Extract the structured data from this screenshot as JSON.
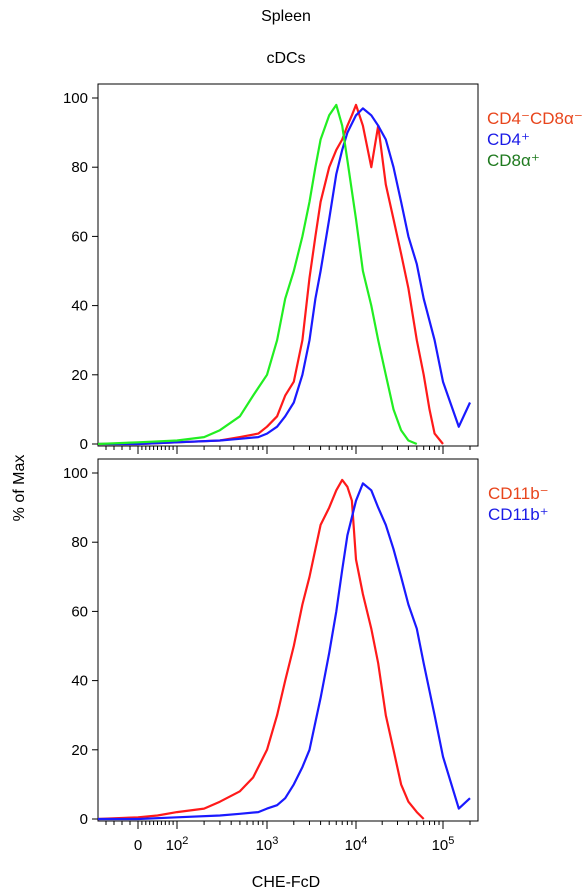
{
  "figure": {
    "title": "Spleen",
    "subtitle": "cDCs",
    "ylabel": "% of Max",
    "xlabel": "CHE-FcD"
  },
  "colors": {
    "red": "#ff1a1a",
    "blue": "#1a1aff",
    "green": "#22ee22",
    "legend_red": "#e8451c",
    "legend_blue": "#1a1ae6",
    "legend_green": "#1f7a1f"
  },
  "chart_data": [
    {
      "type": "line",
      "panel": "top",
      "title": "Spleen",
      "subtitle": "cDCs",
      "xscale": "biexponential",
      "xlim": [
        -50,
        200000
      ],
      "ylim": [
        0,
        100
      ],
      "yticks": [
        0,
        20,
        40,
        60,
        80,
        100
      ],
      "legend": [
        "CD4⁻CD8α⁻",
        "CD4⁺",
        "CD8α⁺"
      ],
      "legend_position": "right",
      "series": [
        {
          "name": "CD4⁻CD8α⁻",
          "color": "#ff1a1a",
          "x": [
            -50,
            0,
            100,
            300,
            500,
            800,
            1000,
            1300,
            1600,
            2000,
            2500,
            3000,
            3500,
            4000,
            5000,
            6000,
            7000,
            8000,
            9000,
            10000,
            12000,
            15000,
            18000,
            22000,
            27000,
            33000,
            40000,
            50000,
            60000,
            70000,
            80000,
            100000
          ],
          "y": [
            0,
            0,
            0.5,
            1,
            2,
            3,
            5,
            8,
            14,
            18,
            30,
            48,
            60,
            70,
            80,
            85,
            88,
            92,
            95,
            98,
            92,
            80,
            92,
            75,
            65,
            55,
            45,
            30,
            20,
            10,
            3,
            0
          ]
        },
        {
          "name": "CD4⁺",
          "color": "#1a1aff",
          "x": [
            -50,
            0,
            100,
            300,
            500,
            800,
            1000,
            1300,
            1600,
            2000,
            2500,
            3000,
            3500,
            4000,
            5000,
            6000,
            7000,
            8000,
            10000,
            12000,
            15000,
            18000,
            22000,
            27000,
            33000,
            40000,
            50000,
            60000,
            80000,
            100000,
            150000,
            200000
          ],
          "y": [
            0,
            0,
            0.5,
            1,
            1.5,
            2,
            3,
            5,
            8,
            12,
            20,
            30,
            42,
            50,
            65,
            78,
            85,
            90,
            95,
            97,
            95,
            92,
            88,
            80,
            70,
            60,
            52,
            42,
            30,
            18,
            5,
            12
          ]
        },
        {
          "name": "CD8α⁺",
          "color": "#22ee22",
          "x": [
            -50,
            0,
            100,
            200,
            300,
            500,
            700,
            1000,
            1300,
            1600,
            2000,
            2500,
            3000,
            3500,
            4000,
            5000,
            6000,
            7000,
            8000,
            10000,
            12000,
            15000,
            18000,
            22000,
            27000,
            33000,
            40000,
            50000
          ],
          "y": [
            0,
            0.5,
            1,
            2,
            4,
            8,
            14,
            20,
            30,
            42,
            50,
            60,
            70,
            80,
            88,
            95,
            98,
            92,
            82,
            65,
            50,
            40,
            30,
            20,
            10,
            4,
            1,
            0
          ]
        }
      ]
    },
    {
      "type": "line",
      "panel": "bottom",
      "xscale": "biexponential",
      "xlim": [
        -50,
        200000
      ],
      "ylim": [
        0,
        100
      ],
      "yticks": [
        0,
        20,
        40,
        60,
        80,
        100
      ],
      "xticks": [
        "0",
        "10²",
        "10³",
        "10⁴",
        "10⁵"
      ],
      "legend": [
        "CD11b⁻",
        "CD11b⁺"
      ],
      "legend_position": "right",
      "series": [
        {
          "name": "CD11b⁻",
          "color": "#ff1a1a",
          "x": [
            -50,
            0,
            50,
            100,
            200,
            300,
            500,
            700,
            1000,
            1300,
            1600,
            2000,
            2500,
            3000,
            3500,
            4000,
            5000,
            6000,
            7000,
            8000,
            9000,
            10000,
            12000,
            15000,
            18000,
            22000,
            27000,
            33000,
            40000,
            50000,
            60000
          ],
          "y": [
            0,
            0.5,
            1,
            2,
            3,
            5,
            8,
            12,
            20,
            30,
            40,
            50,
            62,
            70,
            78,
            85,
            90,
            95,
            98,
            96,
            92,
            75,
            65,
            55,
            45,
            30,
            20,
            10,
            5,
            2,
            0
          ]
        },
        {
          "name": "CD11b⁺",
          "color": "#1a1aff",
          "x": [
            -50,
            0,
            100,
            300,
            500,
            800,
            1000,
            1300,
            1600,
            2000,
            2500,
            3000,
            3500,
            4000,
            5000,
            6000,
            7000,
            8000,
            10000,
            12000,
            15000,
            18000,
            22000,
            27000,
            33000,
            40000,
            50000,
            60000,
            80000,
            100000,
            150000,
            200000
          ],
          "y": [
            0,
            0,
            0.5,
            1,
            1.5,
            2,
            3,
            4,
            6,
            10,
            15,
            20,
            28,
            35,
            48,
            60,
            72,
            82,
            92,
            97,
            95,
            90,
            85,
            78,
            70,
            62,
            55,
            45,
            30,
            18,
            3,
            6
          ]
        }
      ]
    }
  ],
  "legends": {
    "top": [
      {
        "label": "CD4⁻CD8α⁻",
        "color": "#e8451c"
      },
      {
        "label": "CD4⁺",
        "color": "#1a1ae6"
      },
      {
        "label": "CD8α⁺",
        "color": "#1f7a1f"
      }
    ],
    "bottom": [
      {
        "label": "CD11b⁻",
        "color": "#e8451c"
      },
      {
        "label": "CD11b⁺",
        "color": "#1a1ae6"
      }
    ]
  }
}
